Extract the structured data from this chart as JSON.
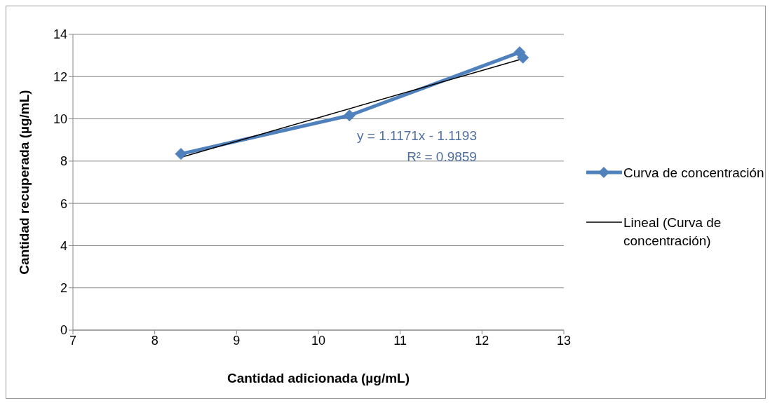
{
  "chart_data": {
    "type": "line",
    "xlabel": "Cantidad adicionada (µg/mL)",
    "ylabel": "Cantidad recuperada (µg/mL)",
    "series": [
      {
        "name": "Curva de concentración",
        "color": "#4f81bd",
        "x": [
          8.32,
          10.38,
          12.46,
          12.5
        ],
        "values": [
          8.34,
          10.16,
          13.15,
          12.9
        ],
        "marker": "diamond"
      },
      {
        "name": "Lineal (Curva de concentración)",
        "color": "#000000",
        "x": [
          8.32,
          12.5
        ],
        "values": [
          8.18,
          12.85
        ],
        "marker": "none"
      }
    ],
    "xlim": [
      7,
      13
    ],
    "xticks": [
      7,
      8,
      9,
      10,
      11,
      12,
      13
    ],
    "ylim": [
      0,
      14
    ],
    "yticks": [
      0,
      2,
      4,
      6,
      8,
      10,
      12,
      14
    ],
    "grid": "y",
    "legend": "right",
    "annotations": [
      "y = 1.1171x - 1.1193",
      "R² = 0.9859"
    ]
  }
}
